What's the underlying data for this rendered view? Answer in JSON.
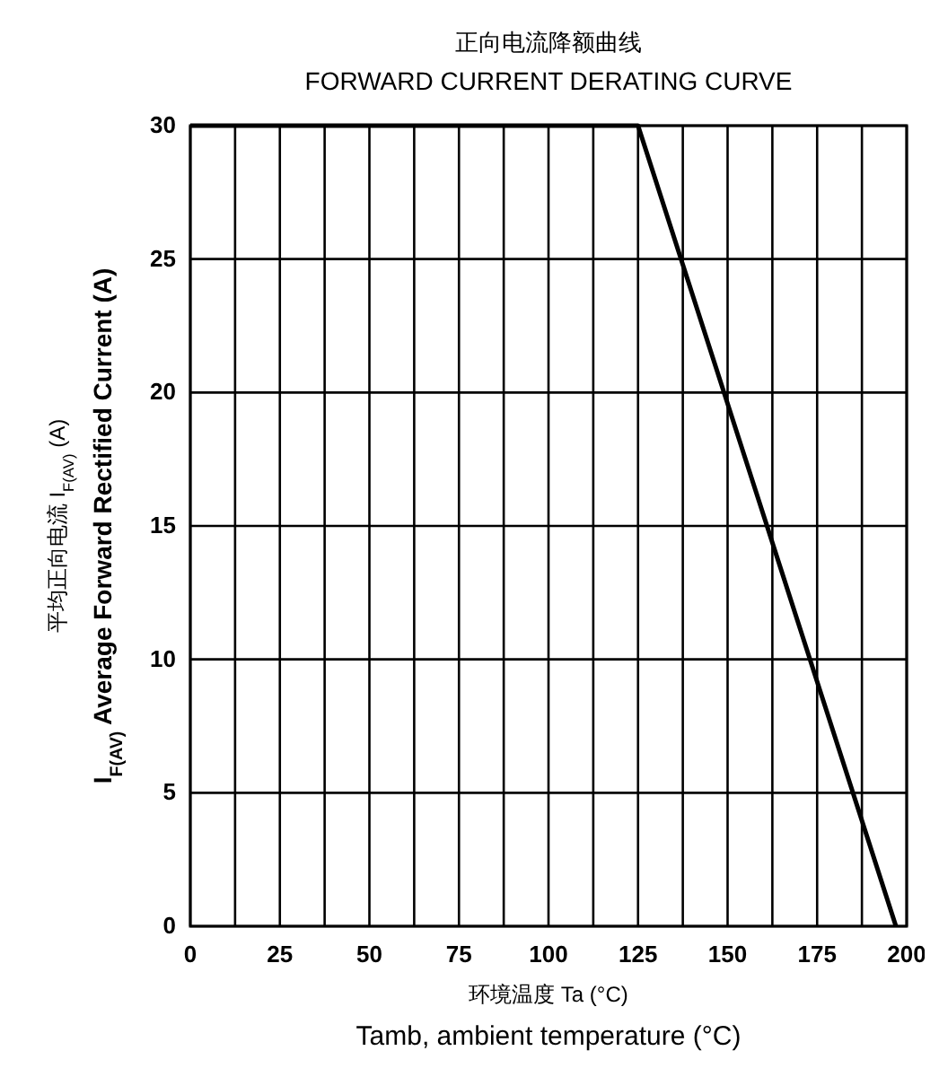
{
  "chart_data": {
    "type": "line",
    "title": "正向电流降额曲线",
    "subtitle": "FORWARD CURRENT DERATING CURVE",
    "xlabel": "环境温度  Ta (°C)\nTamb, ambient temperature (°C)",
    "ylabel": "平均正向电流    I$_{F(AV)}$  (A)\nI$_{F(AV)}$ Average Forward Rectified Current (A)",
    "x": [
      0,
      125,
      197
    ],
    "series": [
      {
        "color": "#000000",
        "values": [
          30,
          30,
          0
        ]
      }
    ],
    "xlim": [
      0,
      200
    ],
    "ylim": [
      0,
      30
    ],
    "xticks": [
      0,
      {
        "value": 12.5,
        "label": null
      },
      25,
      {
        "value": 37.5,
        "label": null
      },
      50,
      {
        "value": 62.5,
        "label": null
      },
      75,
      {
        "value": 87.5,
        "label": null
      },
      100,
      {
        "value": 112.5,
        "label": null
      },
      125,
      {
        "value": 137.5,
        "label": null
      },
      150,
      {
        "value": 162.5,
        "label": null
      },
      175,
      {
        "value": 187.5,
        "label": null
      },
      200
    ],
    "yticks": [
      0,
      5,
      10,
      15,
      20,
      25,
      30
    ],
    "grid": true,
    "marker": "none",
    "line_style": "solid"
  }
}
